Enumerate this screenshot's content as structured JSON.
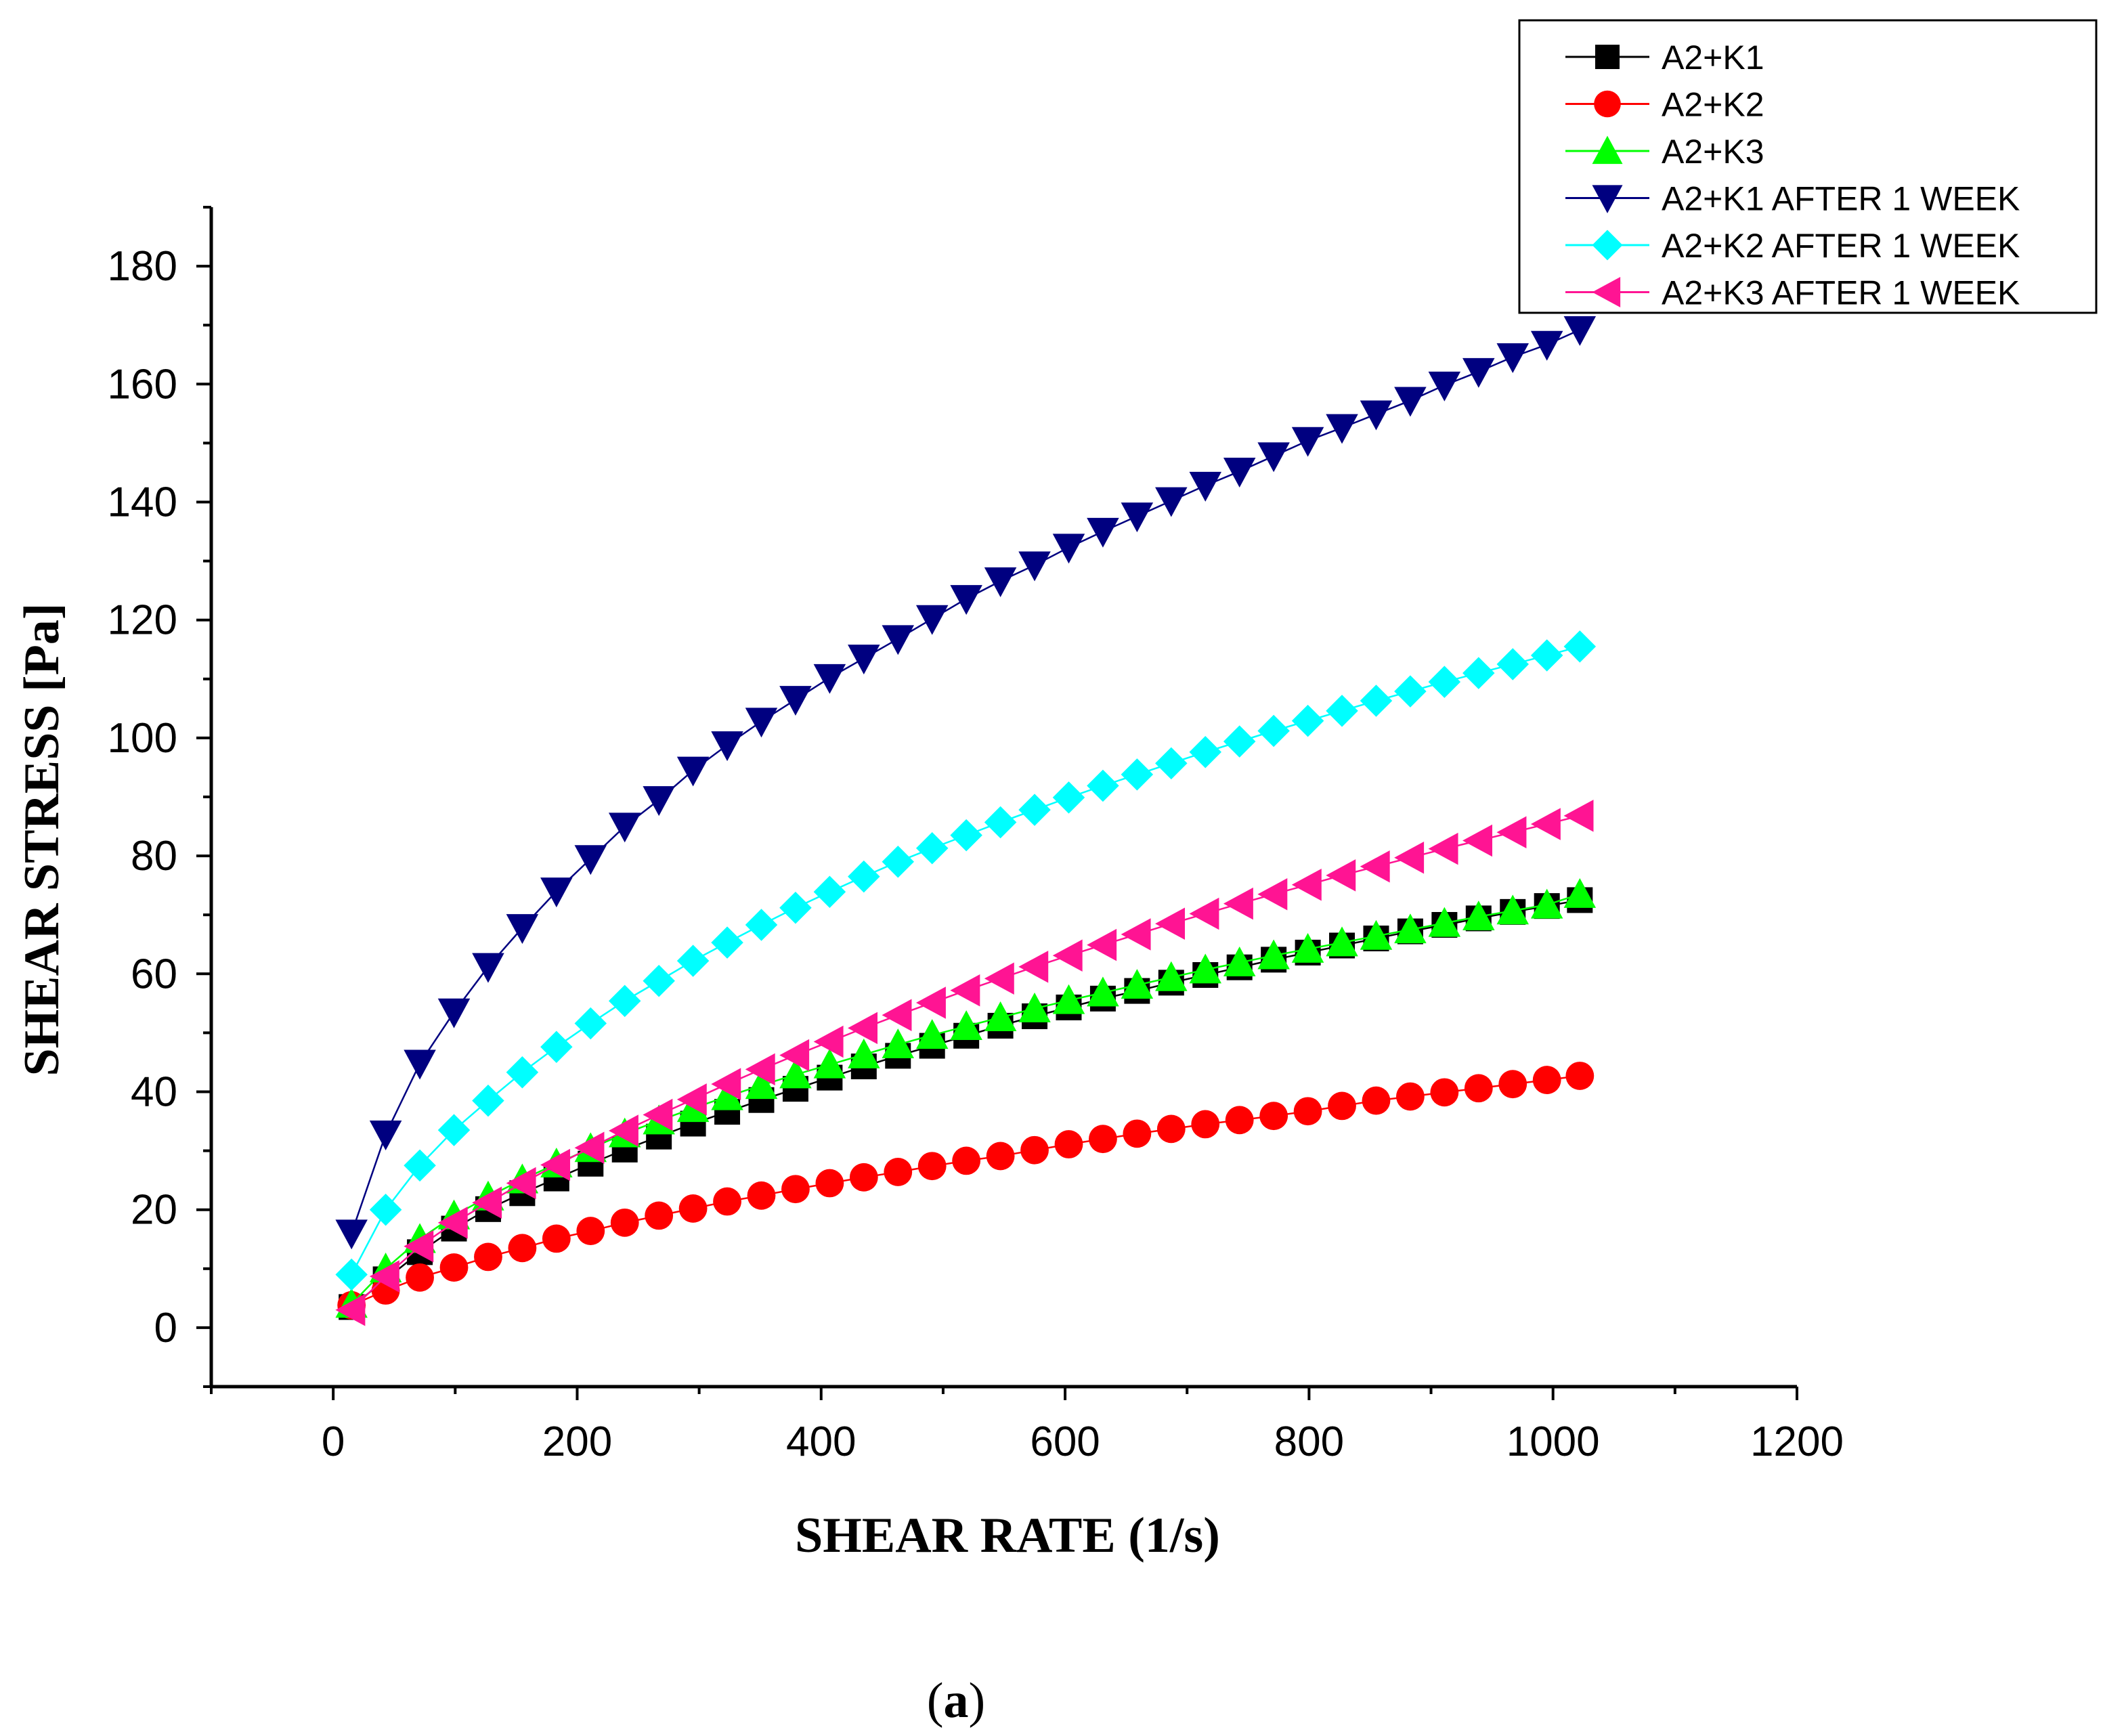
{
  "chart_data": {
    "type": "scatter",
    "xlabel": "SHEAR RATE (1/s)",
    "ylabel": "SHEAR STRESS [Pa]",
    "xlim": [
      -100,
      1200
    ],
    "ylim": [
      -10,
      190
    ],
    "xticks": [
      0,
      200,
      400,
      600,
      800,
      1000,
      1200
    ],
    "yticks": [
      0,
      20,
      40,
      60,
      80,
      100,
      120,
      140,
      160,
      180
    ],
    "grid": false,
    "legend": "top-right",
    "caption_parts": {
      "open": "(",
      "letter": "a",
      "close": ")"
    },
    "x": [
      15,
      43,
      71,
      99,
      127,
      155,
      183,
      211,
      239,
      267,
      295,
      323,
      351,
      379,
      407,
      435,
      463,
      491,
      519,
      547,
      575,
      603,
      631,
      659,
      687,
      715,
      743,
      771,
      799,
      827,
      855,
      883,
      911,
      939,
      967,
      995,
      1022
    ],
    "series": [
      {
        "name": "A2+K1",
        "color": "#000000",
        "marker": "square",
        "values": [
          3.5,
          8.2,
          12.8,
          16.8,
          20.1,
          22.8,
          25.3,
          27.8,
          30.2,
          32.4,
          34.6,
          36.6,
          38.6,
          40.5,
          42.4,
          44.3,
          46.1,
          47.8,
          49.5,
          51.2,
          52.8,
          54.3,
          55.8,
          57.1,
          58.5,
          59.8,
          61.1,
          62.4,
          63.6,
          64.8,
          66.0,
          67.2,
          68.3,
          69.4,
          70.5,
          71.5,
          72.5
        ]
      },
      {
        "name": "A2+K2",
        "color": "#ff0000",
        "marker": "circle",
        "values": [
          3.8,
          6.3,
          8.5,
          10.2,
          12.0,
          13.5,
          15.1,
          16.4,
          17.8,
          19.0,
          20.2,
          21.4,
          22.4,
          23.5,
          24.5,
          25.5,
          26.4,
          27.4,
          28.3,
          29.1,
          30.1,
          31.1,
          32.0,
          32.9,
          33.7,
          34.5,
          35.2,
          35.9,
          36.7,
          37.6,
          38.5,
          39.2,
          39.9,
          40.6,
          41.3,
          42.0,
          42.7
        ]
      },
      {
        "name": "A2+K3",
        "color": "#00ff00",
        "marker": "triangle-up",
        "values": [
          4.0,
          10.0,
          15.0,
          19.0,
          22.2,
          25.1,
          27.8,
          30.4,
          32.9,
          35.1,
          37.2,
          39.2,
          41.1,
          42.9,
          44.6,
          46.3,
          48.0,
          49.6,
          51.1,
          52.6,
          54.1,
          55.5,
          56.8,
          58.1,
          59.4,
          60.7,
          61.9,
          63.1,
          64.2,
          65.3,
          66.4,
          67.5,
          68.6,
          69.7,
          70.7,
          71.7,
          73.5
        ]
      },
      {
        "name": "A2+K1 AFTER 1 WEEK",
        "color": "#000080",
        "marker": "triangle-down",
        "values": [
          16.0,
          32.8,
          44.8,
          53.5,
          61.2,
          67.8,
          74.0,
          79.5,
          85.0,
          89.5,
          94.5,
          98.8,
          102.8,
          106.5,
          110.2,
          113.5,
          116.8,
          120.2,
          123.6,
          126.6,
          129.3,
          132.3,
          135.0,
          137.6,
          140.2,
          142.8,
          145.2,
          147.8,
          150.4,
          152.6,
          154.9,
          157.2,
          159.8,
          162.1,
          164.6,
          166.7,
          169.2
        ]
      },
      {
        "name": "A2+K2 AFTER 1 WEEK",
        "color": "#00ffff",
        "marker": "diamond",
        "values": [
          9.0,
          20.0,
          27.5,
          33.5,
          38.5,
          43.3,
          47.6,
          51.6,
          55.4,
          58.8,
          62.2,
          65.3,
          68.3,
          71.2,
          73.9,
          76.5,
          79.0,
          81.3,
          83.5,
          85.7,
          87.8,
          89.9,
          91.9,
          93.8,
          95.7,
          97.6,
          99.4,
          101.2,
          102.9,
          104.6,
          106.3,
          107.9,
          109.5,
          111.0,
          112.5,
          114.0,
          115.5
        ]
      },
      {
        "name": "A2+K3 AFTER 1 WEEK",
        "color": "#ff1493",
        "marker": "triangle-left",
        "values": [
          3.0,
          8.7,
          13.8,
          17.8,
          21.2,
          24.5,
          27.6,
          30.5,
          33.4,
          36.1,
          38.7,
          41.3,
          43.8,
          46.2,
          48.5,
          50.8,
          53.0,
          55.1,
          57.2,
          59.2,
          61.2,
          63.1,
          64.9,
          66.7,
          68.5,
          70.2,
          71.9,
          73.5,
          75.1,
          76.7,
          78.2,
          79.7,
          81.2,
          82.6,
          84.0,
          85.4,
          86.8
        ]
      }
    ]
  }
}
